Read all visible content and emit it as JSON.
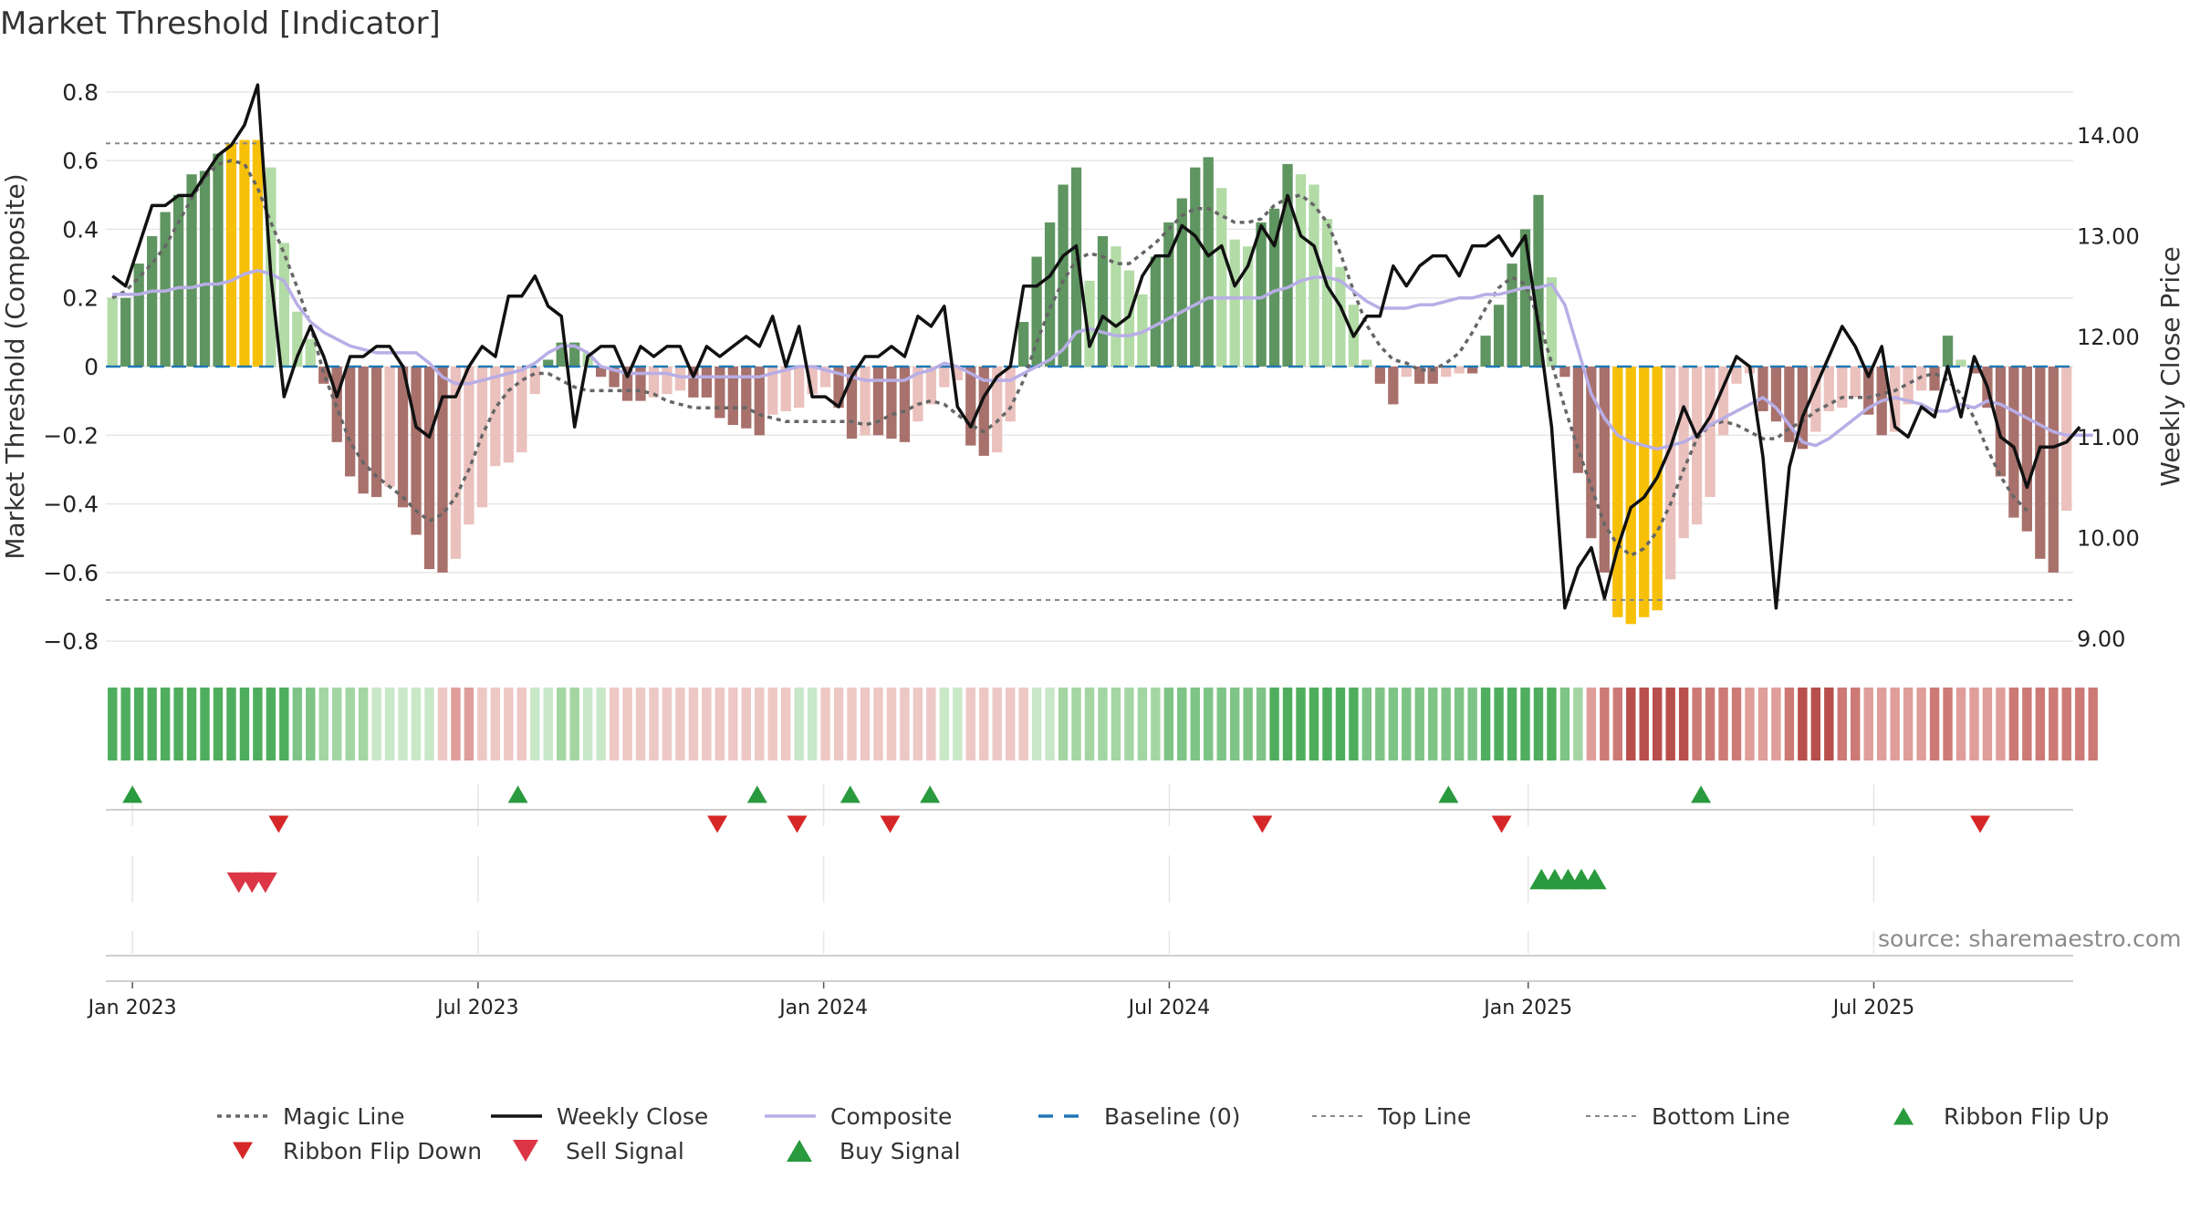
{
  "chart_data": {
    "type": "bar",
    "title": "Market Threshold [Indicator]",
    "ylabel": "Market Threshold (Composite)",
    "y2label": "Weekly Close Price",
    "ylim": [
      -0.85,
      0.85
    ],
    "y2lim": [
      8.8,
      14.6
    ],
    "yticks": [
      "0.8",
      "0.6",
      "0.4",
      "0.2",
      "0",
      "−0.2",
      "−0.4",
      "−0.6",
      "−0.8"
    ],
    "y2ticks": [
      "14.00",
      "13.00",
      "12.00",
      "11.00",
      "10.00",
      "9.00"
    ],
    "xticks": [
      "Jan 2023",
      "Jul 2023",
      "Jan 2024",
      "Jul 2024",
      "Jan 2025",
      "Jul 2025"
    ],
    "x_range": [
      "2022-12-19",
      "2025-10-20"
    ],
    "top_line": 0.65,
    "bottom_line": -0.68,
    "baseline": 0,
    "source": "source: sharemaestro.com",
    "bars": [
      0.2,
      0.2,
      0.3,
      0.38,
      0.45,
      0.5,
      0.56,
      0.57,
      0.62,
      0.65,
      0.66,
      0.66,
      0.58,
      0.36,
      0.16,
      0.08,
      -0.05,
      -0.22,
      -0.32,
      -0.37,
      -0.38,
      -0.35,
      -0.41,
      -0.49,
      -0.59,
      -0.6,
      -0.56,
      -0.46,
      -0.41,
      -0.29,
      -0.28,
      -0.25,
      -0.08,
      0.02,
      0.07,
      0.07,
      0.04,
      -0.03,
      -0.06,
      -0.1,
      -0.1,
      -0.09,
      -0.08,
      -0.07,
      -0.09,
      -0.09,
      -0.15,
      -0.17,
      -0.18,
      -0.2,
      -0.14,
      -0.13,
      -0.12,
      -0.08,
      -0.06,
      -0.12,
      -0.21,
      -0.2,
      -0.2,
      -0.21,
      -0.22,
      -0.16,
      -0.11,
      -0.06,
      -0.04,
      -0.23,
      -0.26,
      -0.25,
      -0.16,
      0.13,
      0.32,
      0.42,
      0.53,
      0.58,
      0.25,
      0.38,
      0.35,
      0.28,
      0.21,
      0.32,
      0.42,
      0.49,
      0.58,
      0.61,
      0.52,
      0.37,
      0.35,
      0.42,
      0.46,
      0.59,
      0.56,
      0.53,
      0.43,
      0.29,
      0.18,
      0.02,
      -0.05,
      -0.11,
      -0.03,
      -0.05,
      -0.05,
      -0.03,
      -0.02,
      -0.02,
      0.09,
      0.18,
      0.3,
      0.4,
      0.5,
      0.26,
      -0.03,
      -0.31,
      -0.5,
      -0.6,
      -0.73,
      -0.75,
      -0.73,
      -0.71,
      -0.62,
      -0.5,
      -0.46,
      -0.38,
      -0.2,
      -0.05,
      -0.02,
      -0.13,
      -0.16,
      -0.22,
      -0.24,
      -0.19,
      -0.13,
      -0.12,
      -0.09,
      -0.14,
      -0.2,
      -0.19,
      -0.11,
      -0.07,
      -0.07,
      0.09,
      0.02,
      -0.02,
      -0.12,
      -0.32,
      -0.44,
      -0.48,
      -0.56,
      -0.6,
      -0.42
    ],
    "composite": [
      0.21,
      0.21,
      0.21,
      0.22,
      0.22,
      0.23,
      0.23,
      0.24,
      0.24,
      0.25,
      0.27,
      0.28,
      0.27,
      0.25,
      0.18,
      0.13,
      0.1,
      0.08,
      0.06,
      0.05,
      0.04,
      0.04,
      0.04,
      0.04,
      0.01,
      -0.03,
      -0.05,
      -0.05,
      -0.04,
      -0.03,
      -0.02,
      -0.01,
      0.01,
      0.04,
      0.06,
      0.06,
      0.04,
      0.0,
      -0.01,
      -0.02,
      -0.02,
      -0.02,
      -0.02,
      -0.03,
      -0.03,
      -0.03,
      -0.03,
      -0.03,
      -0.03,
      -0.03,
      -0.02,
      -0.01,
      0.0,
      0.0,
      -0.01,
      -0.02,
      -0.03,
      -0.04,
      -0.04,
      -0.04,
      -0.04,
      -0.02,
      -0.01,
      0.01,
      0.0,
      -0.02,
      -0.04,
      -0.04,
      -0.04,
      -0.02,
      0.0,
      0.02,
      0.05,
      0.1,
      0.11,
      0.1,
      0.09,
      0.09,
      0.1,
      0.12,
      0.14,
      0.16,
      0.18,
      0.2,
      0.2,
      0.2,
      0.2,
      0.2,
      0.22,
      0.23,
      0.25,
      0.26,
      0.26,
      0.25,
      0.22,
      0.19,
      0.17,
      0.17,
      0.17,
      0.18,
      0.18,
      0.19,
      0.2,
      0.2,
      0.21,
      0.21,
      0.22,
      0.23,
      0.23,
      0.24,
      0.18,
      0.05,
      -0.08,
      -0.15,
      -0.2,
      -0.22,
      -0.23,
      -0.24,
      -0.23,
      -0.22,
      -0.2,
      -0.17,
      -0.15,
      -0.13,
      -0.11,
      -0.09,
      -0.12,
      -0.17,
      -0.22,
      -0.23,
      -0.21,
      -0.18,
      -0.15,
      -0.12,
      -0.1,
      -0.09,
      -0.1,
      -0.11,
      -0.13,
      -0.13,
      -0.11,
      -0.12,
      -0.1,
      -0.11,
      -0.13,
      -0.15,
      -0.17,
      -0.19,
      -0.2,
      -0.2,
      -0.2
    ],
    "magic": [
      0.2,
      0.22,
      0.26,
      0.3,
      0.35,
      0.42,
      0.49,
      0.55,
      0.59,
      0.6,
      0.59,
      0.52,
      0.42,
      0.33,
      0.23,
      0.12,
      -0.02,
      -0.12,
      -0.22,
      -0.28,
      -0.32,
      -0.35,
      -0.38,
      -0.42,
      -0.45,
      -0.43,
      -0.38,
      -0.3,
      -0.2,
      -0.12,
      -0.07,
      -0.04,
      -0.02,
      -0.02,
      -0.04,
      -0.06,
      -0.07,
      -0.07,
      -0.07,
      -0.07,
      -0.07,
      -0.08,
      -0.1,
      -0.11,
      -0.12,
      -0.12,
      -0.12,
      -0.12,
      -0.12,
      -0.14,
      -0.15,
      -0.16,
      -0.16,
      -0.16,
      -0.16,
      -0.16,
      -0.16,
      -0.17,
      -0.16,
      -0.14,
      -0.13,
      -0.11,
      -0.1,
      -0.11,
      -0.14,
      -0.17,
      -0.19,
      -0.16,
      -0.12,
      -0.04,
      0.07,
      0.17,
      0.25,
      0.31,
      0.33,
      0.32,
      0.3,
      0.3,
      0.33,
      0.36,
      0.4,
      0.44,
      0.46,
      0.46,
      0.44,
      0.42,
      0.42,
      0.43,
      0.47,
      0.49,
      0.5,
      0.47,
      0.42,
      0.33,
      0.22,
      0.12,
      0.06,
      0.02,
      0.01,
      -0.01,
      -0.01,
      0.01,
      0.04,
      0.1,
      0.17,
      0.23,
      0.26,
      0.24,
      0.14,
      0.01,
      -0.12,
      -0.24,
      -0.35,
      -0.46,
      -0.52,
      -0.55,
      -0.53,
      -0.48,
      -0.4,
      -0.3,
      -0.21,
      -0.17,
      -0.16,
      -0.17,
      -0.19,
      -0.21,
      -0.21,
      -0.18,
      -0.16,
      -0.13,
      -0.11,
      -0.09,
      -0.09,
      -0.09,
      -0.08,
      -0.07,
      -0.05,
      -0.03,
      -0.02,
      -0.04,
      -0.08,
      -0.15,
      -0.24,
      -0.32,
      -0.38,
      -0.42
    ],
    "close": [
      12.6,
      12.5,
      12.9,
      13.3,
      13.3,
      13.4,
      13.4,
      13.6,
      13.8,
      13.9,
      14.1,
      14.5,
      12.6,
      11.4,
      11.8,
      12.1,
      11.8,
      11.4,
      11.8,
      11.8,
      11.9,
      11.9,
      11.7,
      11.1,
      11.0,
      11.4,
      11.4,
      11.7,
      11.9,
      11.8,
      12.4,
      12.4,
      12.6,
      12.3,
      12.2,
      11.1,
      11.8,
      11.9,
      11.9,
      11.6,
      11.9,
      11.8,
      11.9,
      11.9,
      11.6,
      11.9,
      11.8,
      11.9,
      12.0,
      11.9,
      12.2,
      11.7,
      12.1,
      11.4,
      11.4,
      11.3,
      11.6,
      11.8,
      11.8,
      11.9,
      11.8,
      12.2,
      12.1,
      12.3,
      11.3,
      11.1,
      11.4,
      11.6,
      11.7,
      12.5,
      12.5,
      12.6,
      12.8,
      12.9,
      11.9,
      12.2,
      12.1,
      12.2,
      12.6,
      12.8,
      12.8,
      13.1,
      13.0,
      12.8,
      12.9,
      12.5,
      12.7,
      13.1,
      12.9,
      13.4,
      13.0,
      12.9,
      12.5,
      12.3,
      12.0,
      12.2,
      12.2,
      12.7,
      12.5,
      12.7,
      12.8,
      12.8,
      12.6,
      12.9,
      12.9,
      13.0,
      12.8,
      13.0,
      12.1,
      11.1,
      9.3,
      9.7,
      9.9,
      9.4,
      9.9,
      10.3,
      10.4,
      10.6,
      10.9,
      11.3,
      11.0,
      11.2,
      11.5,
      11.8,
      11.7,
      10.8,
      9.3,
      10.7,
      11.2,
      11.5,
      11.8,
      12.1,
      11.9,
      11.6,
      11.9,
      11.1,
      11.0,
      11.3,
      11.2,
      11.7,
      11.2,
      11.8,
      11.5,
      11.0,
      10.9,
      10.5,
      10.9,
      10.9,
      10.95,
      11.1
    ],
    "ribbon_flip_up": [
      "2023-01-02",
      "2023-07-24",
      "2023-11-27",
      "2024-01-15",
      "2024-02-26",
      "2024-11-25",
      "2025-04-07"
    ],
    "ribbon_flip_down": [
      "2023-03-20",
      "2023-11-06",
      "2023-12-18",
      "2024-02-05",
      "2024-08-19",
      "2024-12-23",
      "2025-09-01"
    ],
    "sell_signal": [
      "2023-02-27",
      "2023-03-06",
      "2023-03-13"
    ],
    "buy_signal": [
      "2025-01-13",
      "2025-01-20",
      "2025-01-27",
      "2025-02-03",
      "2025-02-10"
    ]
  },
  "legend": [
    {
      "label": "Magic Line",
      "style": "dotted",
      "color": "#666666"
    },
    {
      "label": "Weekly Close",
      "style": "solid",
      "color": "#111111"
    },
    {
      "label": "Composite",
      "style": "solid",
      "color": "#b8aee6"
    },
    {
      "label": "Baseline (0)",
      "style": "dashed",
      "color": "#1f77b4"
    },
    {
      "label": "Top Line",
      "style": "dotted-thin",
      "color": "#888888"
    },
    {
      "label": "Bottom Line",
      "style": "dotted-thin",
      "color": "#888888"
    },
    {
      "label": "Ribbon Flip Up",
      "style": "triangle-up",
      "color": "#2a9a3e"
    },
    {
      "label": "Ribbon Flip Down",
      "style": "triangle-down",
      "color": "#d62728"
    },
    {
      "label": "Sell Signal",
      "style": "triangle-down-large",
      "color": "#dc3545"
    },
    {
      "label": "Buy Signal",
      "style": "triangle-up-large",
      "color": "#2a9a3e"
    }
  ],
  "colors": {
    "positive_strong": "#5f9560",
    "positive_weak": "#b2dba6",
    "negative_strong": "#a8716c",
    "negative_weak": "#ebc1bd",
    "extreme": "#f7c008",
    "grid": "#e6e6e6"
  }
}
